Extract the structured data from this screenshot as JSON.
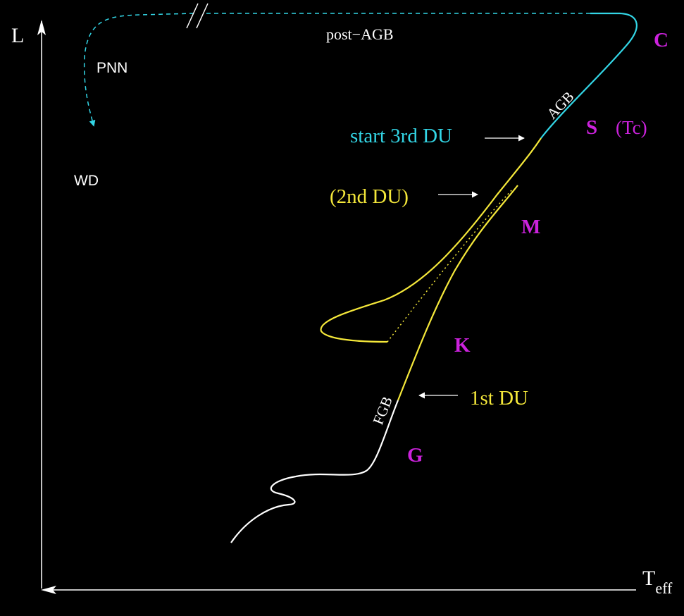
{
  "axes": {
    "y_label": "L",
    "x_label_main": "T",
    "x_label_sub": "eff"
  },
  "phases": {
    "post_agb": "post−AGB",
    "pnn": "PNN",
    "wd": "WD",
    "agb": "AGB",
    "fgb": "FGB"
  },
  "events": {
    "third_du": "start 3rd DU",
    "second_du": "(2nd DU)",
    "first_du": "1st DU"
  },
  "spectral_types": {
    "c": "C",
    "s": "S",
    "tc": "(Tc)",
    "m": "M",
    "k": "K",
    "g": "G"
  },
  "colors": {
    "background": "#000000",
    "white": "#ffffff",
    "cyan": "#33d6e6",
    "yellow": "#f5e83a",
    "magenta": "#cc22dd"
  }
}
